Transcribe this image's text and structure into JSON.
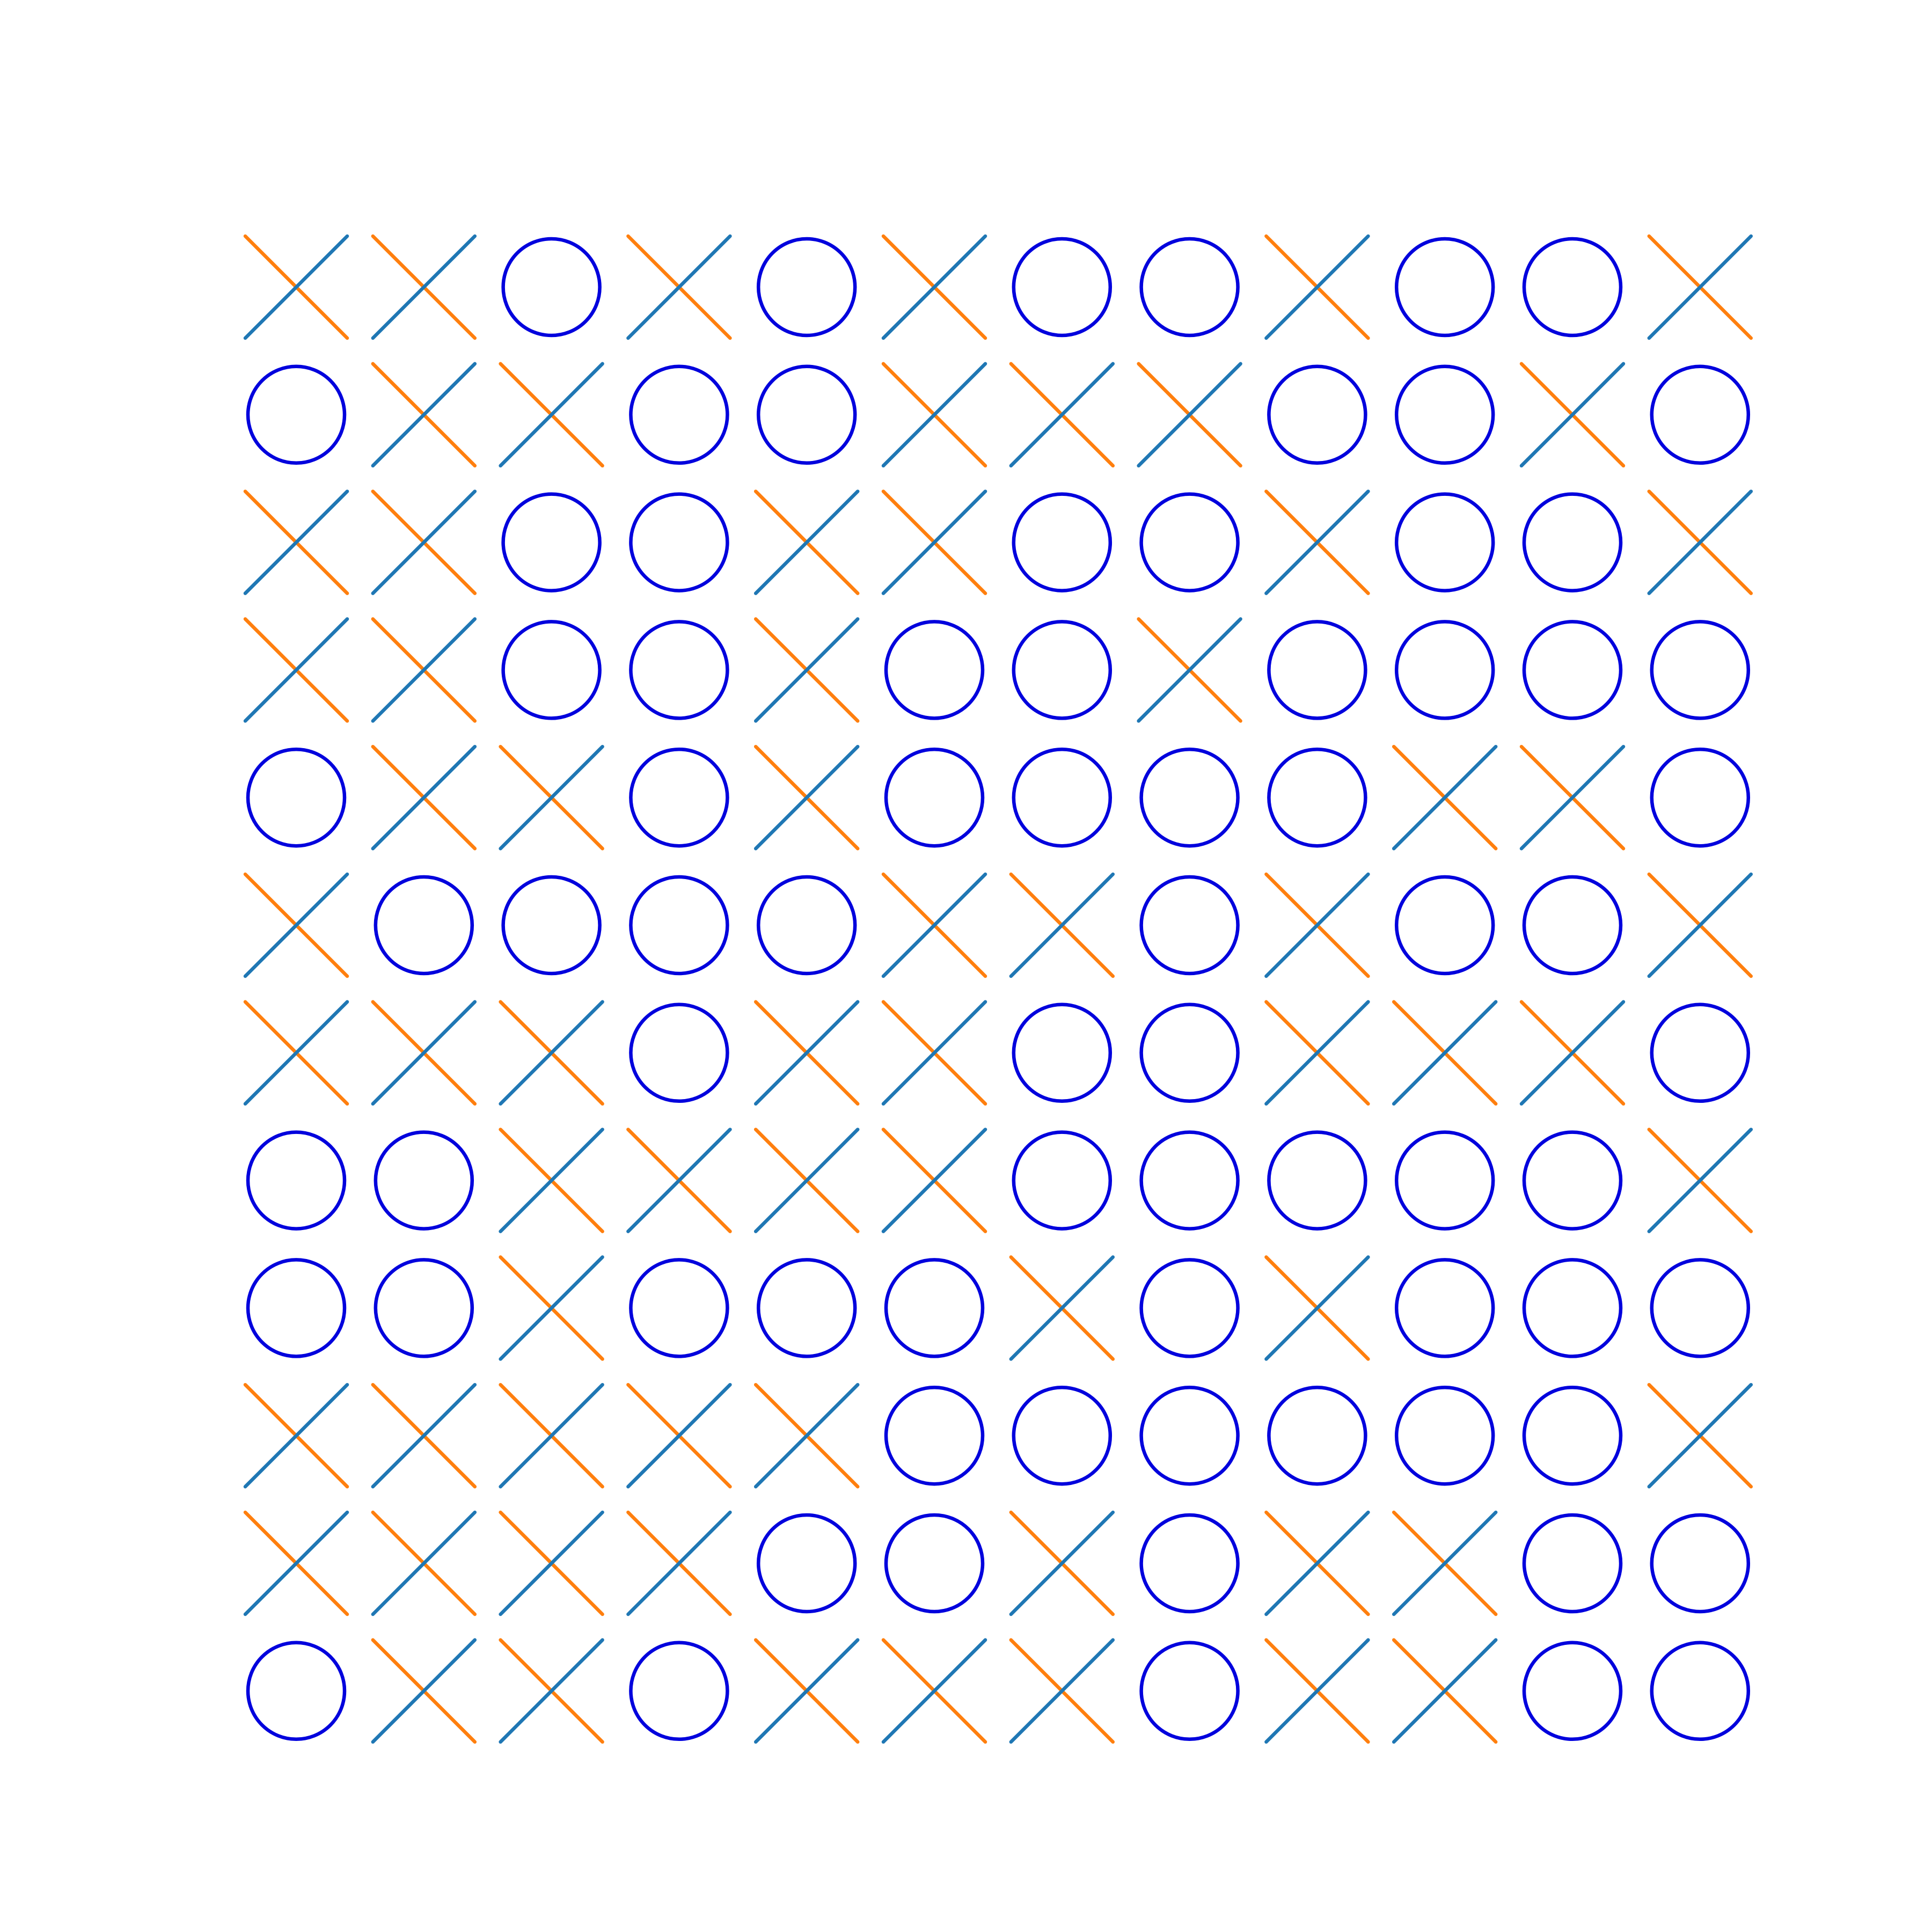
{
  "board": {
    "rows": [
      [
        "X",
        "X",
        "O",
        "X",
        "O",
        "X",
        "O",
        "O",
        "X",
        "O",
        "O",
        "X"
      ],
      [
        "O",
        "X",
        "X",
        "O",
        "O",
        "X",
        "X",
        "X",
        "O",
        "O",
        "X",
        "O"
      ],
      [
        "X",
        "X",
        "O",
        "O",
        "X",
        "X",
        "O",
        "O",
        "X",
        "O",
        "O",
        "X"
      ],
      [
        "X",
        "X",
        "O",
        "O",
        "X",
        "O",
        "O",
        "X",
        "O",
        "O",
        "O",
        "O"
      ],
      [
        "O",
        "X",
        "X",
        "O",
        "X",
        "O",
        "O",
        "O",
        "O",
        "X",
        "X",
        "O"
      ],
      [
        "X",
        "O",
        "O",
        "O",
        "O",
        "X",
        "X",
        "O",
        "X",
        "O",
        "O",
        "X"
      ],
      [
        "X",
        "X",
        "X",
        "O",
        "X",
        "X",
        "O",
        "O",
        "X",
        "X",
        "X",
        "O"
      ],
      [
        "O",
        "O",
        "X",
        "X",
        "X",
        "X",
        "O",
        "O",
        "O",
        "O",
        "O",
        "X"
      ],
      [
        "O",
        "O",
        "X",
        "O",
        "O",
        "O",
        "X",
        "O",
        "X",
        "O",
        "O",
        "O"
      ],
      [
        "X",
        "X",
        "X",
        "X",
        "X",
        "O",
        "O",
        "O",
        "O",
        "O",
        "O",
        "X"
      ],
      [
        "X",
        "X",
        "X",
        "X",
        "O",
        "O",
        "X",
        "O",
        "X",
        "X",
        "O",
        "O"
      ],
      [
        "O",
        "X",
        "X",
        "O",
        "X",
        "X",
        "X",
        "O",
        "X",
        "X",
        "O",
        "O"
      ]
    ]
  },
  "colors": {
    "background": "#ffffff",
    "circle": "#0000dd",
    "x_stroke_a": "#1f77b4",
    "x_stroke_b": "#ff7f0e"
  }
}
